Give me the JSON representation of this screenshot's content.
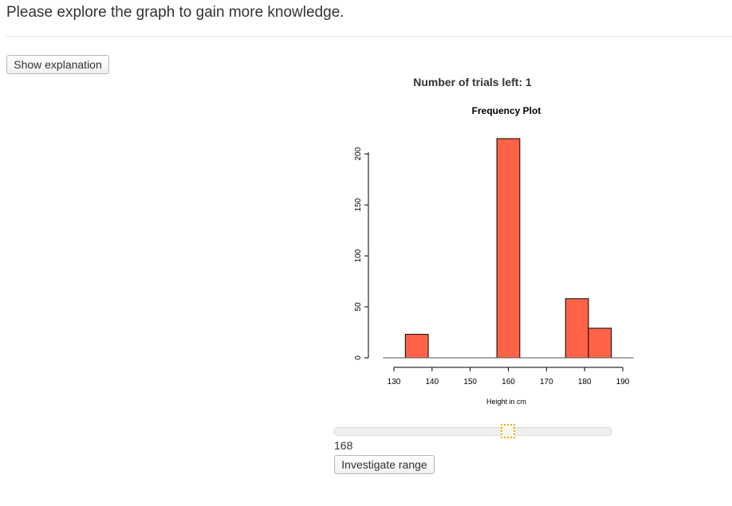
{
  "header": {
    "title": "Please explore the graph to gain more knowledge."
  },
  "controls": {
    "show_explanation_label": "Show explanation",
    "trials_label": "Number of trials left: 1",
    "investigate_label": "Investigate range"
  },
  "slider": {
    "value": 168,
    "display_value": "168",
    "min": 130,
    "max": 190
  },
  "colors": {
    "bar_fill": "#ff6347",
    "handle_border": "#e5b100"
  },
  "chart_data": {
    "type": "bar",
    "title": "Frequency Plot",
    "xlabel": "Height in cm",
    "ylabel": "",
    "bars": [
      {
        "x0": 133,
        "x1": 139,
        "value": 23
      },
      {
        "x0": 139,
        "x1": 145,
        "value": 0
      },
      {
        "x0": 145,
        "x1": 151,
        "value": 0
      },
      {
        "x0": 151,
        "x1": 157,
        "value": 0
      },
      {
        "x0": 157,
        "x1": 163,
        "value": 215
      },
      {
        "x0": 163,
        "x1": 169,
        "value": 0
      },
      {
        "x0": 169,
        "x1": 175,
        "value": 0
      },
      {
        "x0": 175,
        "x1": 181,
        "value": 58
      },
      {
        "x0": 181,
        "x1": 187,
        "value": 29
      }
    ],
    "xticks": [
      130,
      140,
      150,
      160,
      170,
      180,
      190
    ],
    "yticks": [
      0,
      50,
      100,
      150,
      200
    ],
    "xlim": [
      130,
      190
    ],
    "ylim": [
      0,
      215
    ],
    "grid": false
  }
}
